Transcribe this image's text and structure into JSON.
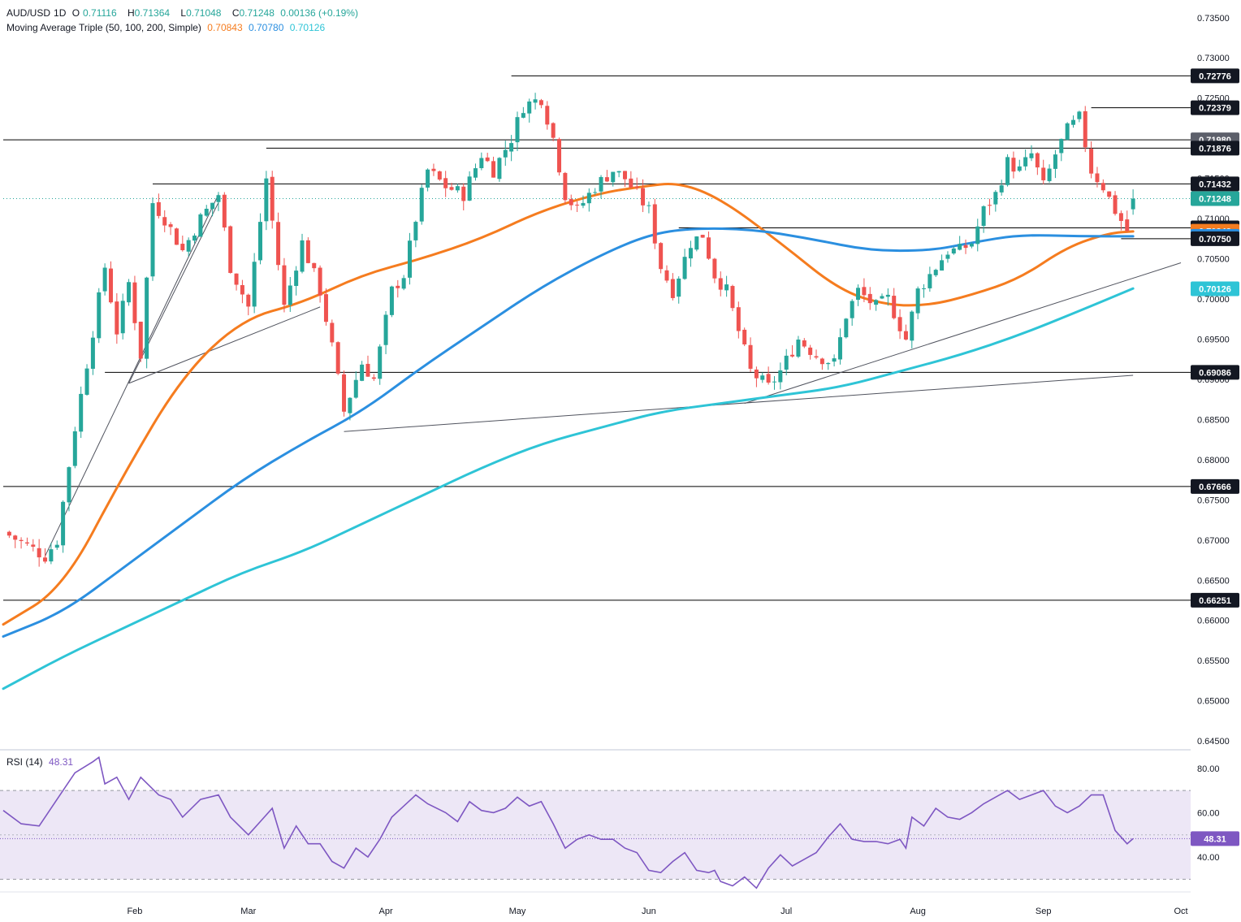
{
  "header": {
    "symbol": "AUD/USD",
    "timeframe": "1D",
    "ohlc": {
      "open_label": "O",
      "open": "0.71116",
      "high_label": "H",
      "high": "0.71364",
      "low_label": "L",
      "low": "0.71048",
      "close_label": "C",
      "close": "0.71248",
      "change": "0.00136 (+0.19%)"
    },
    "ma_title": "Moving Average Triple (50, 100, 200, Simple)",
    "ma_values": [
      "0.70843",
      "0.70780",
      "0.70126"
    ],
    "rsi_title": "RSI (14)",
    "rsi_value": "48.31"
  },
  "colors": {
    "bull": "#26a69a",
    "bear": "#ef5350",
    "ma50": "#f57c1f",
    "ma100": "#2b8fe0",
    "ma200": "#2ec4d6",
    "rsi": "#7e57c2",
    "rsi_band": "#ede7f6",
    "hline": "#000000",
    "price_tag": "#26a69a",
    "dark_tag": "#131722",
    "grey_tag": "#5d606b"
  },
  "chart_data": [
    {
      "type": "candlestick",
      "title": "AUD/USD, 1D",
      "y_axis_ticks": [
        "0.73500",
        "0.73000",
        "0.72500",
        "0.72000",
        "0.71500",
        "0.71000",
        "0.70500",
        "0.70000",
        "0.69500",
        "0.69000",
        "0.68500",
        "0.68000",
        "0.67500",
        "0.67000",
        "0.66500",
        "0.66000",
        "0.65500",
        "0.65000",
        "0.64500"
      ],
      "ylim": [
        0.644,
        0.7372
      ],
      "x_axis_ticks": [
        "Feb",
        "Mar",
        "Apr",
        "May",
        "Jun",
        "Jul",
        "Aug",
        "Sep",
        "Oct"
      ],
      "x_tick_days": [
        22,
        41,
        64,
        86,
        108,
        131,
        153,
        174,
        197
      ],
      "days_total": 197,
      "anchors": [
        {
          "day": 0,
          "price": 0.671
        },
        {
          "day": 7,
          "price": 0.668
        },
        {
          "day": 9,
          "price": 0.67
        },
        {
          "day": 12,
          "price": 0.684
        },
        {
          "day": 14,
          "price": 0.692
        },
        {
          "day": 17,
          "price": 0.704
        },
        {
          "day": 19,
          "price": 0.696
        },
        {
          "day": 21,
          "price": 0.702
        },
        {
          "day": 23,
          "price": 0.693
        },
        {
          "day": 25,
          "price": 0.712
        },
        {
          "day": 27,
          "price": 0.71
        },
        {
          "day": 30,
          "price": 0.706
        },
        {
          "day": 33,
          "price": 0.71
        },
        {
          "day": 36,
          "price": 0.713
        },
        {
          "day": 38,
          "price": 0.704
        },
        {
          "day": 41,
          "price": 0.699
        },
        {
          "day": 44,
          "price": 0.715
        },
        {
          "day": 47,
          "price": 0.699
        },
        {
          "day": 50,
          "price": 0.707
        },
        {
          "day": 53,
          "price": 0.701
        },
        {
          "day": 55,
          "price": 0.694
        },
        {
          "day": 57,
          "price": 0.686
        },
        {
          "day": 60,
          "price": 0.692
        },
        {
          "day": 62,
          "price": 0.69
        },
        {
          "day": 65,
          "price": 0.701
        },
        {
          "day": 67,
          "price": 0.703
        },
        {
          "day": 69,
          "price": 0.71
        },
        {
          "day": 71,
          "price": 0.716
        },
        {
          "day": 74,
          "price": 0.714
        },
        {
          "day": 77,
          "price": 0.713
        },
        {
          "day": 80,
          "price": 0.718
        },
        {
          "day": 82,
          "price": 0.716
        },
        {
          "day": 85,
          "price": 0.72
        },
        {
          "day": 87,
          "price": 0.724
        },
        {
          "day": 90,
          "price": 0.725
        },
        {
          "day": 92,
          "price": 0.72
        },
        {
          "day": 94,
          "price": 0.713
        },
        {
          "day": 96,
          "price": 0.711
        },
        {
          "day": 99,
          "price": 0.714
        },
        {
          "day": 102,
          "price": 0.716
        },
        {
          "day": 104,
          "price": 0.715
        },
        {
          "day": 106,
          "price": 0.713
        },
        {
          "day": 108,
          "price": 0.711
        },
        {
          "day": 110,
          "price": 0.704
        },
        {
          "day": 112,
          "price": 0.701
        },
        {
          "day": 115,
          "price": 0.707
        },
        {
          "day": 117,
          "price": 0.708
        },
        {
          "day": 119,
          "price": 0.703
        },
        {
          "day": 121,
          "price": 0.701
        },
        {
          "day": 123,
          "price": 0.696
        },
        {
          "day": 125,
          "price": 0.691
        },
        {
          "day": 128,
          "price": 0.689
        },
        {
          "day": 130,
          "price": 0.691
        },
        {
          "day": 133,
          "price": 0.695
        },
        {
          "day": 136,
          "price": 0.693
        },
        {
          "day": 139,
          "price": 0.692
        },
        {
          "day": 141,
          "price": 0.698
        },
        {
          "day": 143,
          "price": 0.701
        },
        {
          "day": 146,
          "price": 0.699
        },
        {
          "day": 148,
          "price": 0.7
        },
        {
          "day": 151,
          "price": 0.695
        },
        {
          "day": 153,
          "price": 0.701
        },
        {
          "day": 155,
          "price": 0.703
        },
        {
          "day": 158,
          "price": 0.706
        },
        {
          "day": 160,
          "price": 0.706
        },
        {
          "day": 162,
          "price": 0.707
        },
        {
          "day": 164,
          "price": 0.711
        },
        {
          "day": 166,
          "price": 0.713
        },
        {
          "day": 168,
          "price": 0.717
        },
        {
          "day": 170,
          "price": 0.716
        },
        {
          "day": 172,
          "price": 0.718
        },
        {
          "day": 174,
          "price": 0.714
        },
        {
          "day": 176,
          "price": 0.718
        },
        {
          "day": 178,
          "price": 0.721
        },
        {
          "day": 180,
          "price": 0.7225
        },
        {
          "day": 182,
          "price": 0.716
        },
        {
          "day": 184,
          "price": 0.714
        },
        {
          "day": 186,
          "price": 0.711
        },
        {
          "day": 188,
          "price": 0.7085
        },
        {
          "day": 189,
          "price": 0.7125
        }
      ],
      "ma_curves": [
        {
          "name": "SMA 50",
          "value_label": "0.70843",
          "points": [
            [
              0,
              0.6595
            ],
            [
              10,
              0.664
            ],
            [
              20,
              0.678
            ],
            [
              30,
              0.6905
            ],
            [
              40,
              0.6975
            ],
            [
              50,
              0.6995
            ],
            [
              60,
              0.703
            ],
            [
              70,
              0.705
            ],
            [
              80,
              0.7075
            ],
            [
              90,
              0.711
            ],
            [
              100,
              0.7132
            ],
            [
              107,
              0.714
            ],
            [
              113,
              0.7145
            ],
            [
              120,
              0.7125
            ],
            [
              130,
              0.707
            ],
            [
              140,
              0.701
            ],
            [
              148,
              0.6992
            ],
            [
              155,
              0.6992
            ],
            [
              162,
              0.7005
            ],
            [
              170,
              0.7025
            ],
            [
              178,
              0.7065
            ],
            [
              185,
              0.7082
            ],
            [
              189,
              0.7084
            ]
          ]
        },
        {
          "name": "SMA 100",
          "value_label": "0.70780",
          "points": [
            [
              0,
              0.658
            ],
            [
              10,
              0.661
            ],
            [
              20,
              0.6665
            ],
            [
              30,
              0.672
            ],
            [
              40,
              0.6775
            ],
            [
              50,
              0.682
            ],
            [
              60,
              0.686
            ],
            [
              70,
              0.6915
            ],
            [
              80,
              0.6965
            ],
            [
              90,
              0.7015
            ],
            [
              100,
              0.7055
            ],
            [
              108,
              0.708
            ],
            [
              115,
              0.7088
            ],
            [
              125,
              0.7087
            ],
            [
              135,
              0.7075
            ],
            [
              145,
              0.706
            ],
            [
              155,
              0.706
            ],
            [
              162,
              0.707
            ],
            [
              170,
              0.708
            ],
            [
              180,
              0.7078
            ],
            [
              189,
              0.7078
            ]
          ]
        },
        {
          "name": "SMA 200",
          "value_label": "0.70126",
          "points": [
            [
              0,
              0.6515
            ],
            [
              10,
              0.6555
            ],
            [
              20,
              0.659
            ],
            [
              30,
              0.6625
            ],
            [
              40,
              0.666
            ],
            [
              50,
              0.6685
            ],
            [
              60,
              0.672
            ],
            [
              70,
              0.6755
            ],
            [
              80,
              0.679
            ],
            [
              90,
              0.682
            ],
            [
              100,
              0.684
            ],
            [
              110,
              0.686
            ],
            [
              120,
              0.687
            ],
            [
              130,
              0.688
            ],
            [
              140,
              0.689
            ],
            [
              150,
              0.691
            ],
            [
              160,
              0.693
            ],
            [
              170,
              0.6955
            ],
            [
              180,
              0.6985
            ],
            [
              189,
              0.7013
            ]
          ]
        }
      ],
      "horizontal_levels": [
        {
          "price": 0.72776,
          "label": "0.72776",
          "from_day": 85
        },
        {
          "price": 0.72379,
          "label": "0.72379",
          "from_day": 182
        },
        {
          "price": 0.7198,
          "label": "0.71980",
          "from_day": 0,
          "tag": "grey"
        },
        {
          "price": 0.71876,
          "label": "0.71876",
          "from_day": 44
        },
        {
          "price": 0.71432,
          "label": "0.71432",
          "from_day": 25
        },
        {
          "price": 0.71248,
          "label": "0.71248",
          "from_day": 0,
          "tag": "price",
          "dotted": true
        },
        {
          "price": 0.70885,
          "label": "0.70885",
          "from_day": 113
        },
        {
          "price": 0.70843,
          "label": "0.70843",
          "tag": "ma50",
          "no_line": true
        },
        {
          "price": 0.7078,
          "label": "0.70780",
          "tag": "ma100",
          "no_line": true
        },
        {
          "price": 0.7075,
          "label": "0.70750",
          "from_day": 187
        },
        {
          "price": 0.70126,
          "label": "0.70126",
          "tag": "ma200",
          "no_line": true
        },
        {
          "price": 0.69086,
          "label": "0.69086",
          "from_day": 17
        },
        {
          "price": 0.67666,
          "label": "0.67666",
          "from_day": 0
        },
        {
          "price": 0.66251,
          "label": "0.66251",
          "from_day": 0
        }
      ],
      "trend_lines": [
        [
          [
            7,
            0.668
          ],
          [
            36,
            0.713
          ]
        ],
        [
          [
            21,
            0.6895
          ],
          [
            36,
            0.712
          ]
        ],
        [
          [
            21,
            0.6895
          ],
          [
            53,
            0.699
          ]
        ],
        [
          [
            57,
            0.6835
          ],
          [
            189,
            0.6905
          ]
        ],
        [
          [
            124,
            0.687
          ],
          [
            197,
            0.7045
          ]
        ]
      ]
    },
    {
      "type": "line",
      "title": "RSI (14)",
      "y_axis_ticks": [
        "80.00",
        "60.00",
        "40.00"
      ],
      "ylim": [
        25,
        88
      ],
      "bands": [
        30,
        70
      ],
      "midline": 50,
      "current": 48.31,
      "points": [
        [
          0,
          61
        ],
        [
          3,
          55
        ],
        [
          6,
          54
        ],
        [
          9,
          66
        ],
        [
          12,
          78
        ],
        [
          15,
          83
        ],
        [
          16,
          85
        ],
        [
          17,
          73
        ],
        [
          19,
          76
        ],
        [
          21,
          66
        ],
        [
          23,
          76
        ],
        [
          26,
          68
        ],
        [
          28,
          66
        ],
        [
          30,
          58
        ],
        [
          33,
          66
        ],
        [
          36,
          68
        ],
        [
          38,
          58
        ],
        [
          41,
          50
        ],
        [
          43,
          56
        ],
        [
          45,
          62
        ],
        [
          47,
          44
        ],
        [
          49,
          54
        ],
        [
          51,
          46
        ],
        [
          53,
          46
        ],
        [
          55,
          38
        ],
        [
          57,
          35
        ],
        [
          59,
          44
        ],
        [
          61,
          40
        ],
        [
          63,
          48
        ],
        [
          65,
          58
        ],
        [
          67,
          63
        ],
        [
          69,
          68
        ],
        [
          71,
          64
        ],
        [
          74,
          60
        ],
        [
          76,
          56
        ],
        [
          78,
          65
        ],
        [
          80,
          61
        ],
        [
          82,
          60
        ],
        [
          84,
          62
        ],
        [
          86,
          67
        ],
        [
          88,
          63
        ],
        [
          90,
          65
        ],
        [
          92,
          55
        ],
        [
          94,
          44
        ],
        [
          96,
          48
        ],
        [
          98,
          50
        ],
        [
          100,
          48
        ],
        [
          102,
          48
        ],
        [
          104,
          44
        ],
        [
          106,
          42
        ],
        [
          108,
          34
        ],
        [
          110,
          33
        ],
        [
          112,
          38
        ],
        [
          114,
          42
        ],
        [
          116,
          34
        ],
        [
          118,
          33
        ],
        [
          119,
          34
        ],
        [
          120,
          29
        ],
        [
          122,
          27
        ],
        [
          124,
          31
        ],
        [
          126,
          26
        ],
        [
          128,
          35
        ],
        [
          130,
          41
        ],
        [
          132,
          36
        ],
        [
          134,
          39
        ],
        [
          136,
          42
        ],
        [
          138,
          49
        ],
        [
          140,
          55
        ],
        [
          142,
          48
        ],
        [
          144,
          47
        ],
        [
          146,
          47
        ],
        [
          148,
          46
        ],
        [
          150,
          48
        ],
        [
          151,
          44
        ],
        [
          152,
          58
        ],
        [
          154,
          54
        ],
        [
          156,
          62
        ],
        [
          158,
          58
        ],
        [
          160,
          57
        ],
        [
          162,
          60
        ],
        [
          164,
          64
        ],
        [
          166,
          67
        ],
        [
          168,
          70
        ],
        [
          170,
          66
        ],
        [
          172,
          68
        ],
        [
          174,
          70
        ],
        [
          176,
          63
        ],
        [
          178,
          60
        ],
        [
          180,
          63
        ],
        [
          182,
          68
        ],
        [
          184,
          68
        ],
        [
          186,
          52
        ],
        [
          188,
          46
        ],
        [
          189,
          48.3
        ]
      ]
    }
  ]
}
